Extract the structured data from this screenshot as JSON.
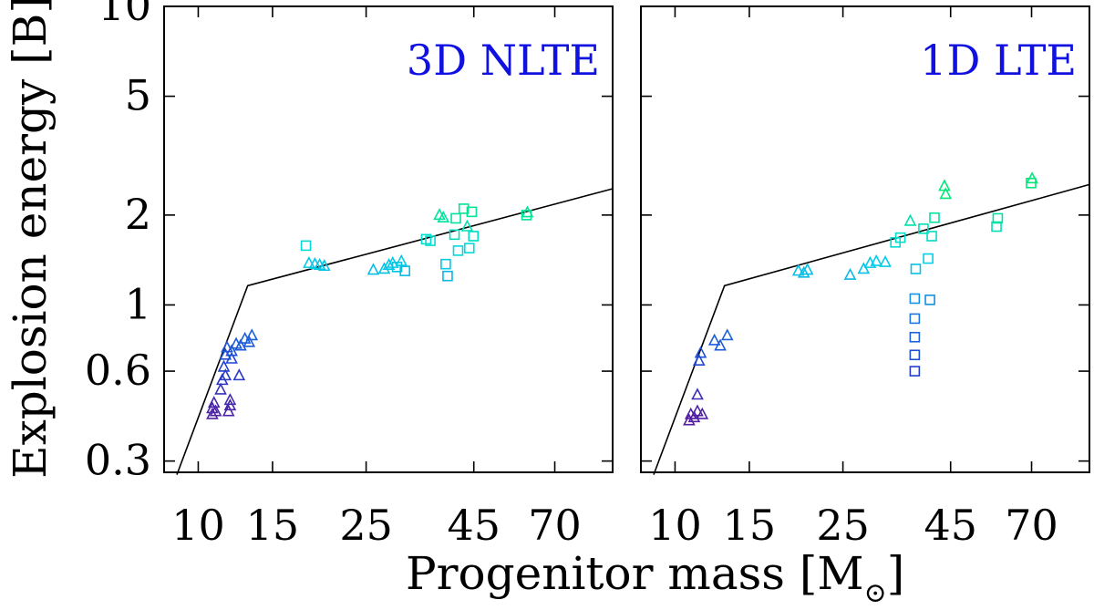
{
  "chart_data": {
    "type": "scatter",
    "ylabel": "Explosion energy [B]",
    "xlabel": "Progenitor mass [M",
    "xlabel_symbol": "⊙",
    "xlabel_close": "]",
    "xscale": "log",
    "yscale": "log",
    "xlim": [
      8.3,
      96
    ],
    "ylim": [
      0.275,
      10
    ],
    "x_ticks": [
      10,
      15,
      25,
      45,
      70
    ],
    "y_ticks": [
      0.3,
      0.6,
      1,
      2,
      5,
      10
    ],
    "x_tick_labels": [
      "10",
      "15",
      "25",
      "45",
      "70"
    ],
    "y_tick_labels": [
      "0.3",
      "0.6",
      "1",
      "2",
      "5",
      "10"
    ],
    "colormap": [
      "#5a1a9a",
      "#2040d0",
      "#1a80e0",
      "#00d8e8",
      "#00e878"
    ],
    "panels": [
      {
        "label": "3D NLTE",
        "fit_line": [
          [
            8.9,
            0.27
          ],
          [
            13.1,
            1.16
          ],
          [
            96,
            2.45
          ]
        ],
        "points": [
          {
            "x": 10.8,
            "y": 0.43,
            "shape": "triangle"
          },
          {
            "x": 10.8,
            "y": 0.45,
            "shape": "triangle"
          },
          {
            "x": 10.9,
            "y": 0.47,
            "shape": "triangle"
          },
          {
            "x": 11.0,
            "y": 0.44,
            "shape": "triangle"
          },
          {
            "x": 11.3,
            "y": 0.52,
            "shape": "triangle"
          },
          {
            "x": 11.4,
            "y": 0.56,
            "shape": "triangle"
          },
          {
            "x": 11.5,
            "y": 0.62,
            "shape": "triangle"
          },
          {
            "x": 11.6,
            "y": 0.58,
            "shape": "triangle"
          },
          {
            "x": 11.6,
            "y": 0.68,
            "shape": "triangle"
          },
          {
            "x": 11.7,
            "y": 0.72,
            "shape": "triangle"
          },
          {
            "x": 11.8,
            "y": 0.44,
            "shape": "triangle"
          },
          {
            "x": 11.9,
            "y": 0.46,
            "shape": "triangle"
          },
          {
            "x": 11.9,
            "y": 0.48,
            "shape": "triangle"
          },
          {
            "x": 12.0,
            "y": 0.66,
            "shape": "triangle"
          },
          {
            "x": 12.0,
            "y": 0.7,
            "shape": "triangle"
          },
          {
            "x": 12.3,
            "y": 0.74,
            "shape": "triangle"
          },
          {
            "x": 12.5,
            "y": 0.58,
            "shape": "triangle"
          },
          {
            "x": 12.6,
            "y": 0.73,
            "shape": "triangle"
          },
          {
            "x": 12.9,
            "y": 0.77,
            "shape": "triangle"
          },
          {
            "x": 13.2,
            "y": 0.75,
            "shape": "triangle"
          },
          {
            "x": 13.4,
            "y": 0.79,
            "shape": "triangle"
          },
          {
            "x": 18.0,
            "y": 1.58,
            "shape": "square"
          },
          {
            "x": 18.3,
            "y": 1.38,
            "shape": "triangle"
          },
          {
            "x": 18.9,
            "y": 1.37,
            "shape": "triangle"
          },
          {
            "x": 19.4,
            "y": 1.36,
            "shape": "triangle"
          },
          {
            "x": 19.9,
            "y": 1.35,
            "shape": "triangle"
          },
          {
            "x": 26.0,
            "y": 1.31,
            "shape": "triangle"
          },
          {
            "x": 27.6,
            "y": 1.32,
            "shape": "triangle"
          },
          {
            "x": 28.3,
            "y": 1.36,
            "shape": "triangle"
          },
          {
            "x": 28.9,
            "y": 1.38,
            "shape": "triangle"
          },
          {
            "x": 29.6,
            "y": 1.34,
            "shape": "square"
          },
          {
            "x": 30.3,
            "y": 1.4,
            "shape": "triangle"
          },
          {
            "x": 30.9,
            "y": 1.3,
            "shape": "square"
          },
          {
            "x": 34.7,
            "y": 1.66,
            "shape": "square"
          },
          {
            "x": 35.5,
            "y": 1.64,
            "shape": "square"
          },
          {
            "x": 37.3,
            "y": 2.0,
            "shape": "triangle"
          },
          {
            "x": 38.1,
            "y": 1.96,
            "shape": "triangle"
          },
          {
            "x": 38.6,
            "y": 1.37,
            "shape": "square"
          },
          {
            "x": 39.0,
            "y": 1.25,
            "shape": "square"
          },
          {
            "x": 40.5,
            "y": 1.72,
            "shape": "square"
          },
          {
            "x": 40.8,
            "y": 1.95,
            "shape": "square"
          },
          {
            "x": 41.3,
            "y": 1.52,
            "shape": "square"
          },
          {
            "x": 42.6,
            "y": 2.1,
            "shape": "square"
          },
          {
            "x": 43.4,
            "y": 1.83,
            "shape": "triangle"
          },
          {
            "x": 43.9,
            "y": 1.55,
            "shape": "square"
          },
          {
            "x": 44.5,
            "y": 2.05,
            "shape": "square"
          },
          {
            "x": 44.9,
            "y": 1.7,
            "shape": "square"
          },
          {
            "x": 60.0,
            "y": 2.0,
            "shape": "square"
          },
          {
            "x": 60.3,
            "y": 2.04,
            "shape": "triangle"
          }
        ]
      },
      {
        "label": "1D LTE",
        "fit_line": [
          [
            8.9,
            0.27
          ],
          [
            13.1,
            1.16
          ],
          [
            96,
            2.53
          ]
        ],
        "points": [
          {
            "x": 10.8,
            "y": 0.41,
            "shape": "triangle"
          },
          {
            "x": 10.9,
            "y": 0.43,
            "shape": "triangle"
          },
          {
            "x": 11.1,
            "y": 0.42,
            "shape": "triangle"
          },
          {
            "x": 11.3,
            "y": 0.44,
            "shape": "triangle"
          },
          {
            "x": 11.3,
            "y": 0.5,
            "shape": "triangle"
          },
          {
            "x": 11.4,
            "y": 0.65,
            "shape": "triangle"
          },
          {
            "x": 11.5,
            "y": 0.69,
            "shape": "triangle"
          },
          {
            "x": 11.6,
            "y": 0.43,
            "shape": "triangle"
          },
          {
            "x": 12.4,
            "y": 0.76,
            "shape": "triangle"
          },
          {
            "x": 12.8,
            "y": 0.73,
            "shape": "triangle"
          },
          {
            "x": 13.3,
            "y": 0.79,
            "shape": "triangle"
          },
          {
            "x": 19.6,
            "y": 1.3,
            "shape": "triangle"
          },
          {
            "x": 20.2,
            "y": 1.28,
            "shape": "triangle"
          },
          {
            "x": 20.6,
            "y": 1.31,
            "shape": "triangle"
          },
          {
            "x": 26.0,
            "y": 1.26,
            "shape": "triangle"
          },
          {
            "x": 28.0,
            "y": 1.32,
            "shape": "triangle"
          },
          {
            "x": 29.0,
            "y": 1.38,
            "shape": "triangle"
          },
          {
            "x": 30.0,
            "y": 1.4,
            "shape": "triangle"
          },
          {
            "x": 31.5,
            "y": 1.39,
            "shape": "triangle"
          },
          {
            "x": 33.3,
            "y": 1.62,
            "shape": "square"
          },
          {
            "x": 34.2,
            "y": 1.68,
            "shape": "square"
          },
          {
            "x": 36.1,
            "y": 1.91,
            "shape": "triangle"
          },
          {
            "x": 37.2,
            "y": 1.32,
            "shape": "square"
          },
          {
            "x": 37.0,
            "y": 1.05,
            "shape": "square"
          },
          {
            "x": 37.0,
            "y": 0.9,
            "shape": "square"
          },
          {
            "x": 37.0,
            "y": 0.78,
            "shape": "square"
          },
          {
            "x": 37.0,
            "y": 0.68,
            "shape": "square"
          },
          {
            "x": 37.0,
            "y": 0.6,
            "shape": "square"
          },
          {
            "x": 38.8,
            "y": 1.8,
            "shape": "square"
          },
          {
            "x": 39.8,
            "y": 1.43,
            "shape": "square"
          },
          {
            "x": 40.2,
            "y": 1.04,
            "shape": "square"
          },
          {
            "x": 40.6,
            "y": 1.7,
            "shape": "square"
          },
          {
            "x": 41.2,
            "y": 1.96,
            "shape": "square"
          },
          {
            "x": 43.5,
            "y": 2.5,
            "shape": "triangle"
          },
          {
            "x": 43.8,
            "y": 2.35,
            "shape": "triangle"
          },
          {
            "x": 57.8,
            "y": 1.83,
            "shape": "square"
          },
          {
            "x": 58.2,
            "y": 1.95,
            "shape": "square"
          },
          {
            "x": 69.8,
            "y": 2.56,
            "shape": "square"
          },
          {
            "x": 70.2,
            "y": 2.65,
            "shape": "triangle"
          }
        ]
      }
    ]
  }
}
